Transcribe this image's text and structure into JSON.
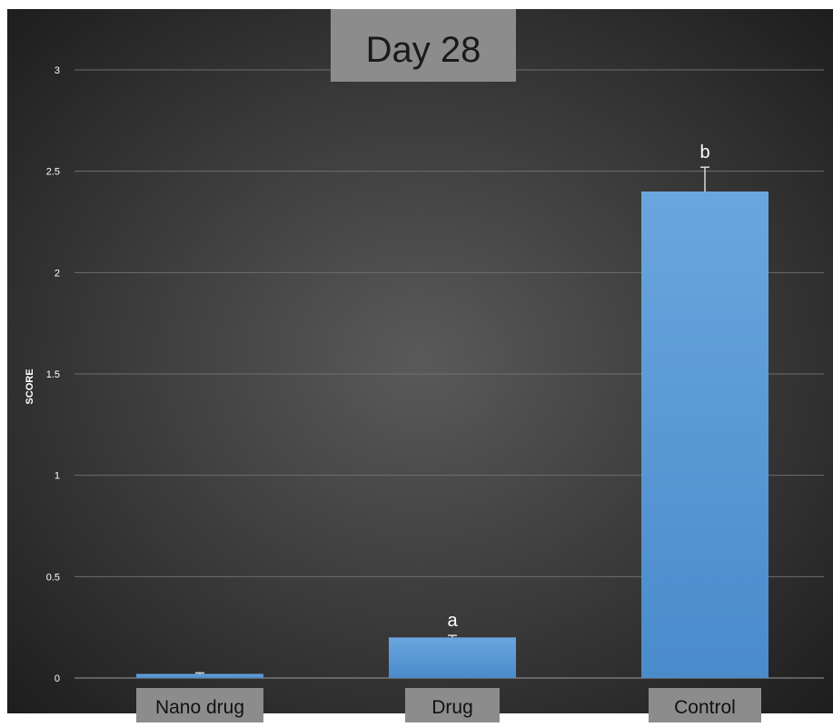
{
  "chart_data": {
    "type": "bar",
    "title": "Day 28",
    "ylabel": "SCORE",
    "xlabel": "",
    "categories": [
      "Nano drug",
      "Drug",
      "Control"
    ],
    "values": [
      0.02,
      0.2,
      2.4
    ],
    "error_bars": [
      0.005,
      0.01,
      0.12
    ],
    "significance_labels": [
      "",
      "a",
      "b"
    ],
    "ylim": [
      0,
      3
    ],
    "yticks": [
      0,
      0.5,
      1,
      1.5,
      2,
      2.5,
      3
    ],
    "ytick_labels": [
      "0",
      "0.5",
      "1",
      "1.5",
      "2",
      "2.5",
      "3"
    ],
    "grid": true,
    "legend": "none",
    "colors": {
      "bar": "#5b9bd5",
      "background_center": "#5a5a5a",
      "background_edge": "#1e1e1e",
      "gridline": "#6e6e6e",
      "label_box": "#8c8c8c",
      "tick_text": "#ffffff"
    }
  }
}
